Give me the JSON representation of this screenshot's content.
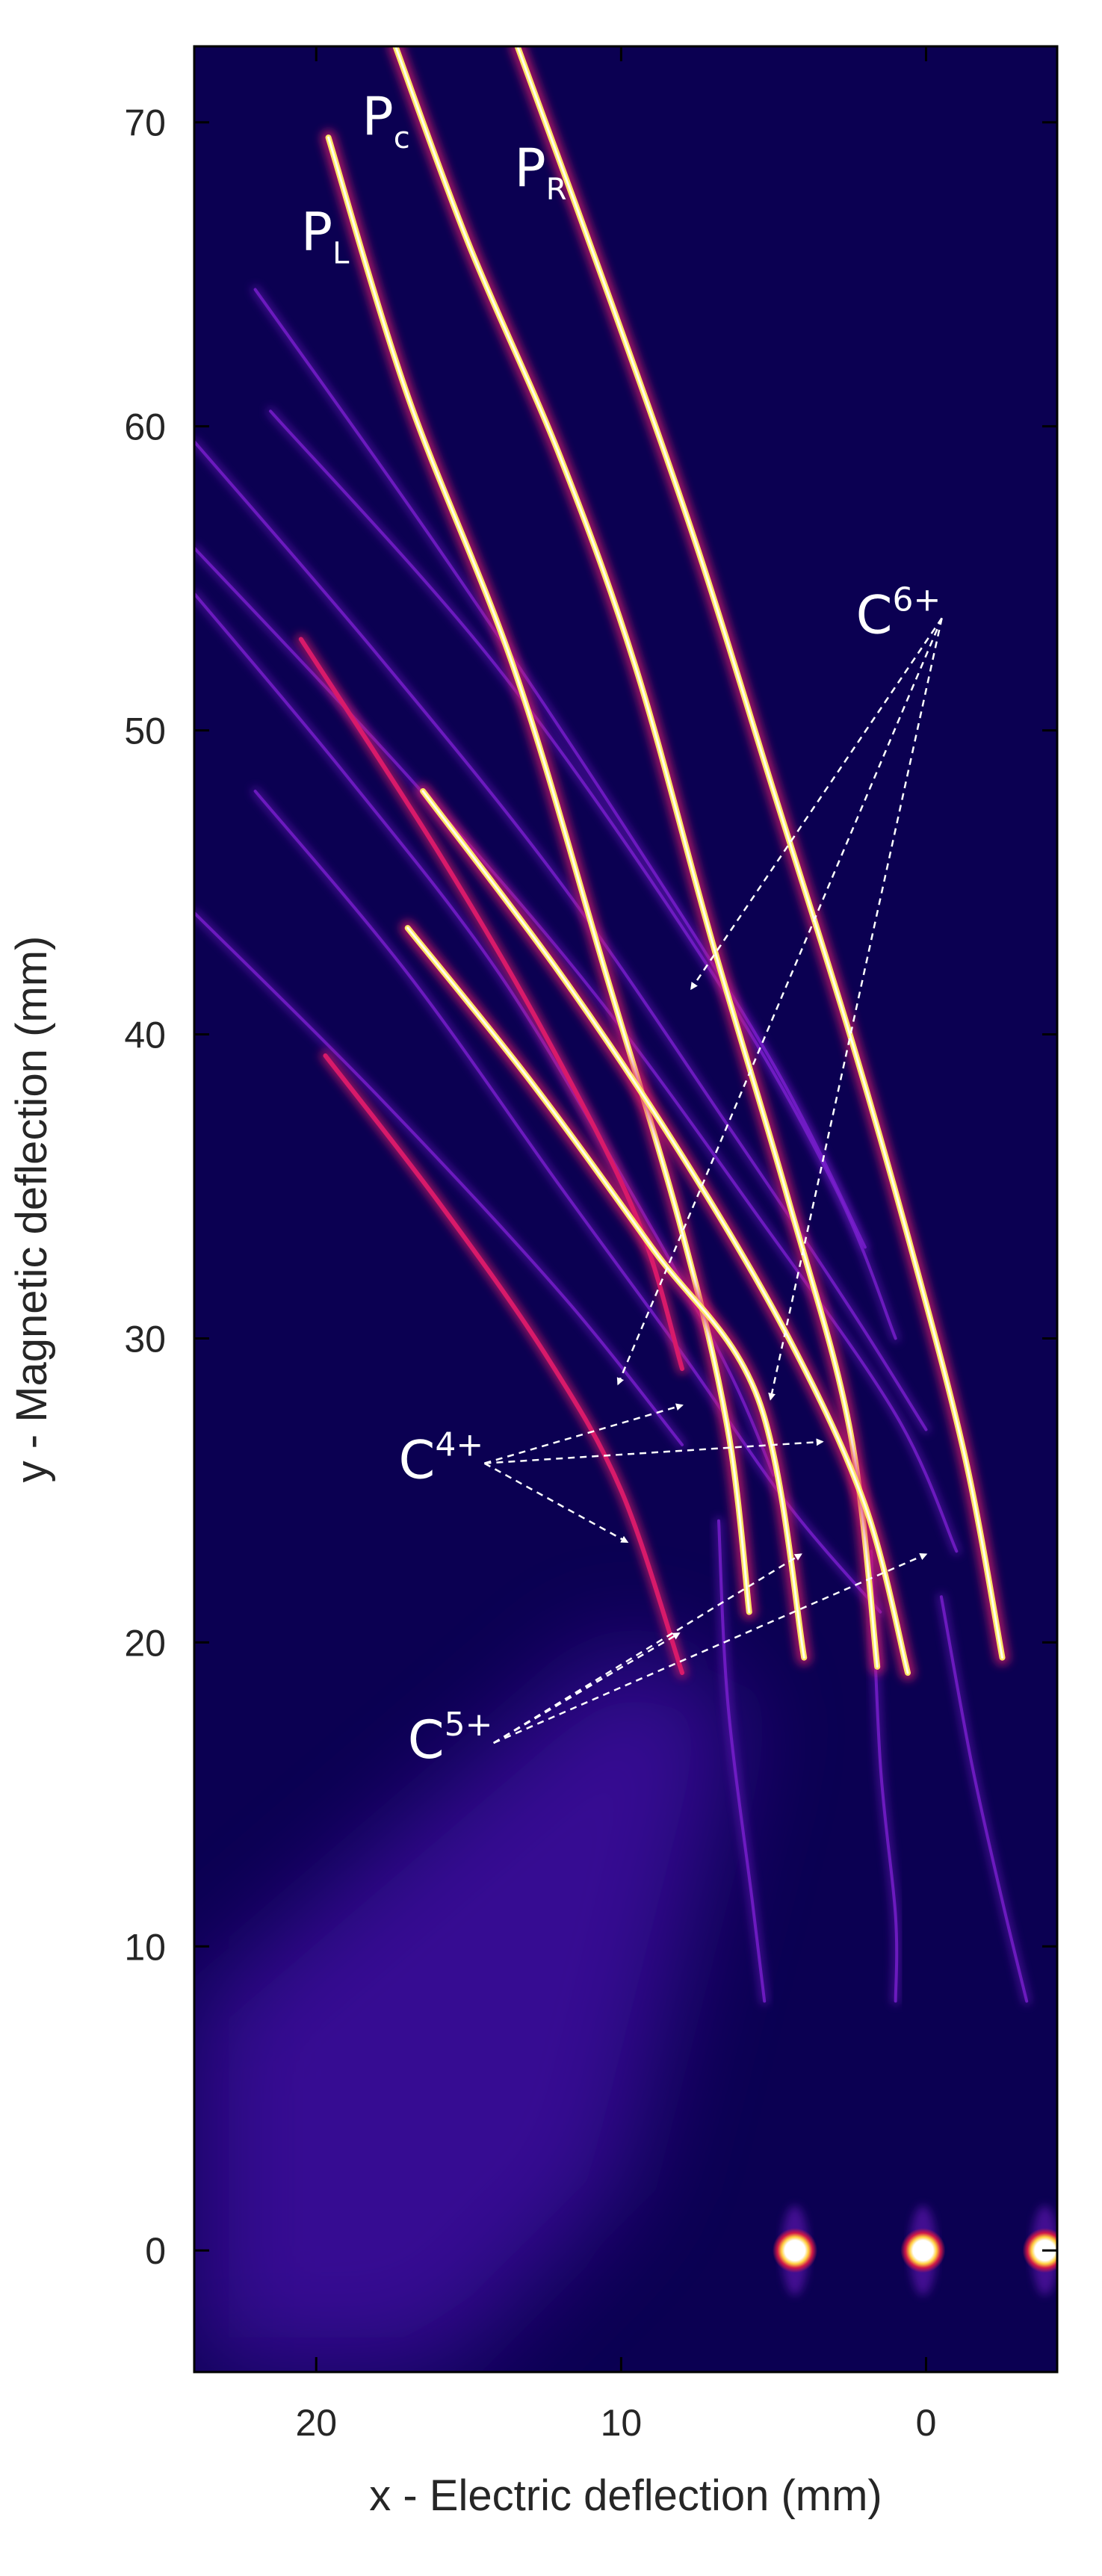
{
  "chart_data": {
    "type": "heatmap",
    "title": "",
    "xlabel": "x - Electric deflection (mm)",
    "ylabel": "y - Magnetic deflection (mm)",
    "xlim": [
      24,
      -4.3
    ],
    "ylim": [
      -4,
      72.5
    ],
    "x_reversed": true,
    "xticks": [
      20,
      10,
      0
    ],
    "yticks": [
      0,
      10,
      20,
      30,
      40,
      50,
      60,
      70
    ],
    "colormap": "plasma-like (dark blue → purple → red → yellow → white)",
    "colors": {
      "background": "#0b0052",
      "diffuse": "#5a12c8",
      "faint_track": "#7a1fd0",
      "mid_track": "#d81a6a",
      "bright_track": "#ffe766",
      "core": "#ffffff"
    },
    "zero_order_spots": [
      {
        "x": 4.3,
        "y": 0
      },
      {
        "x": 0.1,
        "y": 0
      },
      {
        "x": -3.9,
        "y": 0
      }
    ],
    "annotations": [
      {
        "label": "P",
        "sub": "L",
        "x": 20.5,
        "y": 65.8
      },
      {
        "label": "P",
        "sub": "c",
        "x": 18.5,
        "y": 69.6
      },
      {
        "label": "P",
        "sub": "R",
        "x": 13.5,
        "y": 67.9
      },
      {
        "label": "C",
        "sup": "6+",
        "x": 2.3,
        "y": 53.2,
        "arrows_to": [
          {
            "x": 7.7,
            "y": 41.5
          },
          {
            "x": 10.1,
            "y": 28.5
          },
          {
            "x": 5.1,
            "y": 28.0
          }
        ]
      },
      {
        "label": "C",
        "sup": "4+",
        "x": 17.3,
        "y": 25.4,
        "arrows_to": [
          {
            "x": 8.0,
            "y": 27.8
          },
          {
            "x": 3.4,
            "y": 26.6
          },
          {
            "x": 9.8,
            "y": 23.3
          }
        ]
      },
      {
        "label": "C",
        "sup": "5+",
        "x": 17.0,
        "y": 16.2,
        "arrows_to": [
          {
            "x": 8.1,
            "y": 20.3
          },
          {
            "x": 4.1,
            "y": 22.9
          },
          {
            "x": 0.0,
            "y": 22.9
          }
        ]
      }
    ],
    "series": [
      {
        "name": "P_L",
        "intensity": "bright",
        "points": [
          [
            19.6,
            69.5
          ],
          [
            17.0,
            61.0
          ],
          [
            13.5,
            52.0
          ],
          [
            10.5,
            42.0
          ],
          [
            8.0,
            33.5
          ],
          [
            6.5,
            27.0
          ],
          [
            5.8,
            21.0
          ]
        ]
      },
      {
        "name": "P_c",
        "intensity": "bright",
        "points": [
          [
            17.4,
            72.5
          ],
          [
            15.0,
            66.0
          ],
          [
            12.0,
            59.0
          ],
          [
            9.5,
            52.0
          ],
          [
            7.0,
            43.0
          ],
          [
            4.5,
            34.5
          ],
          [
            2.5,
            27.0
          ],
          [
            1.6,
            19.2
          ]
        ]
      },
      {
        "name": "P_R",
        "intensity": "bright",
        "points": [
          [
            13.4,
            72.5
          ],
          [
            10.3,
            64.0
          ],
          [
            7.5,
            56.0
          ],
          [
            5.0,
            48.0
          ],
          [
            2.5,
            40.0
          ],
          [
            0.5,
            33.0
          ],
          [
            -1.3,
            26.0
          ],
          [
            -2.5,
            19.5
          ]
        ]
      },
      {
        "name": "C4+ (a)",
        "intensity": "mid",
        "points": [
          [
            19.7,
            39.3
          ],
          [
            16.0,
            34.5
          ],
          [
            12.5,
            29.5
          ],
          [
            10.0,
            25.0
          ],
          [
            8.0,
            19.0
          ]
        ]
      },
      {
        "name": "C4+ (b)",
        "intensity": "bright",
        "points": [
          [
            17.0,
            43.5
          ],
          [
            13.0,
            38.5
          ],
          [
            9.0,
            33.0
          ],
          [
            5.5,
            28.0
          ],
          [
            4.0,
            19.5
          ]
        ]
      },
      {
        "name": "C4+ (c)",
        "intensity": "bright",
        "points": [
          [
            16.5,
            48.0
          ],
          [
            12.0,
            42.0
          ],
          [
            8.0,
            36.0
          ],
          [
            4.5,
            30.0
          ],
          [
            2.0,
            24.5
          ],
          [
            0.6,
            19.0
          ]
        ]
      },
      {
        "name": "C5+ (a)",
        "intensity": "mid",
        "points": [
          [
            20.5,
            53.0
          ],
          [
            16.0,
            46.0
          ],
          [
            12.5,
            40.0
          ],
          [
            9.5,
            34.0
          ],
          [
            8.0,
            29.0
          ]
        ]
      },
      {
        "name": "C5+ (b)",
        "intensity": "faint",
        "points": [
          [
            24.0,
            54.5
          ],
          [
            19.0,
            48.5
          ],
          [
            14.0,
            42.0
          ],
          [
            9.5,
            34.5
          ],
          [
            6.5,
            29.0
          ],
          [
            5.0,
            25.5
          ]
        ]
      },
      {
        "name": "C5+ (c)",
        "intensity": "faint",
        "points": [
          [
            22.0,
            48.0
          ],
          [
            17.0,
            42.0
          ],
          [
            12.0,
            35.0
          ],
          [
            8.0,
            29.5
          ],
          [
            4.5,
            24.5
          ],
          [
            1.5,
            21.0
          ]
        ]
      },
      {
        "name": "C6+ (a)",
        "intensity": "faint",
        "points": [
          [
            24.0,
            59.5
          ],
          [
            18.0,
            52.5
          ],
          [
            12.0,
            45.0
          ],
          [
            6.5,
            37.0
          ],
          [
            2.5,
            31.0
          ],
          [
            0.0,
            27.0
          ]
        ]
      },
      {
        "name": "C6+ (b)",
        "intensity": "faint",
        "points": [
          [
            24.0,
            56.0
          ],
          [
            17.0,
            48.5
          ],
          [
            11.0,
            41.5
          ],
          [
            5.5,
            34.0
          ],
          [
            1.0,
            27.5
          ],
          [
            -1.0,
            23.0
          ]
        ]
      },
      {
        "name": "C6+ (c)",
        "intensity": "faint",
        "points": [
          [
            22.0,
            64.5
          ],
          [
            16.0,
            56.0
          ],
          [
            10.0,
            47.0
          ],
          [
            5.0,
            39.0
          ],
          [
            2.0,
            33.0
          ]
        ]
      },
      {
        "name": "C6+ (d)",
        "intensity": "faint",
        "points": [
          [
            21.5,
            60.5
          ],
          [
            14.0,
            52.0
          ],
          [
            7.0,
            42.0
          ],
          [
            3.0,
            35.0
          ],
          [
            1.0,
            30.0
          ]
        ]
      },
      {
        "name": "trace (a)",
        "intensity": "faint",
        "points": [
          [
            24.0,
            44.0
          ],
          [
            18.0,
            38.0
          ],
          [
            12.0,
            31.5
          ],
          [
            8.0,
            26.5
          ]
        ]
      },
      {
        "name": "trace (b)",
        "intensity": "faint",
        "points": [
          [
            6.8,
            24.0
          ],
          [
            6.5,
            18.0
          ],
          [
            5.7,
            11.5
          ],
          [
            5.3,
            8.2
          ]
        ]
      },
      {
        "name": "trace (c)",
        "intensity": "faint",
        "points": [
          [
            1.8,
            23.0
          ],
          [
            1.5,
            16.0
          ],
          [
            1.0,
            11.0
          ],
          [
            1.0,
            8.2
          ]
        ]
      },
      {
        "name": "trace (d)",
        "intensity": "faint",
        "points": [
          [
            -0.5,
            21.5
          ],
          [
            -1.5,
            16.0
          ],
          [
            -2.5,
            11.5
          ],
          [
            -3.3,
            8.2
          ]
        ]
      }
    ]
  }
}
